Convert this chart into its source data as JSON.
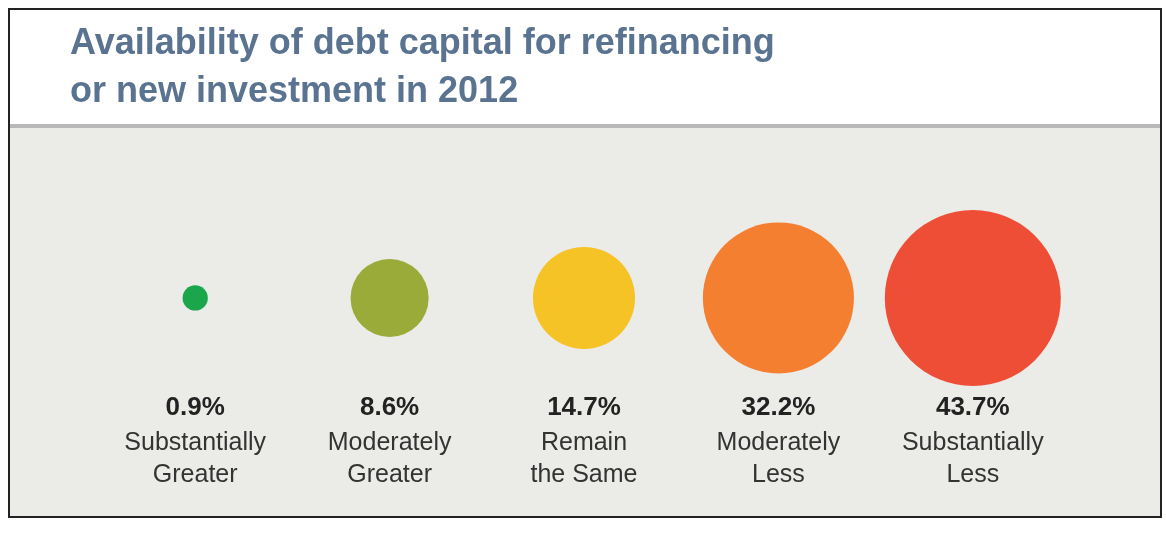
{
  "chart_data": {
    "type": "other",
    "title": "Availability of debt capital for refinancing\nor new investment in 2012",
    "categories": [
      "Substantially\nGreater",
      "Moderately\nGreater",
      "Remain\nthe Same",
      "Moderately\nLess",
      "Substantially\nLess"
    ],
    "values": [
      0.9,
      8.6,
      14.7,
      32.2,
      43.7
    ],
    "value_labels": [
      "0.9%",
      "8.6%",
      "14.7%",
      "32.2%",
      "43.7%"
    ],
    "colors": [
      "#1aa64a",
      "#9aab3a",
      "#f5c325",
      "#f57f30",
      "#ee4e35"
    ]
  }
}
